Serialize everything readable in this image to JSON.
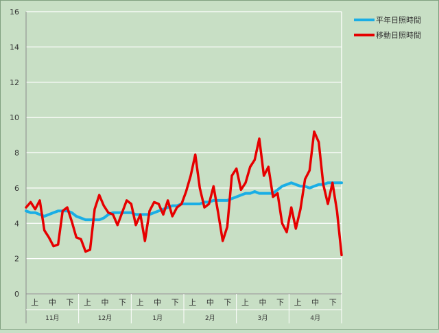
{
  "chart_data": {
    "type": "line",
    "ylim": [
      0,
      16
    ],
    "yticks": [
      0,
      2,
      4,
      6,
      8,
      10,
      12,
      14,
      16
    ],
    "grid": true,
    "legend_position": "top-right",
    "colors": {
      "background": "#c8dfc5",
      "grid": "#ffffff",
      "normal": "#1aaee5",
      "moving": "#e60000"
    },
    "months": [
      {
        "label": "11月",
        "periods": [
          "上",
          "中",
          "下"
        ]
      },
      {
        "label": "12月",
        "periods": [
          "上",
          "中",
          "下"
        ]
      },
      {
        "label": "1月",
        "periods": [
          "上",
          "中",
          "下"
        ]
      },
      {
        "label": "2月",
        "periods": [
          "上",
          "中",
          "下"
        ]
      },
      {
        "label": "3月",
        "periods": [
          "上",
          "中",
          "下"
        ]
      },
      {
        "label": "4月",
        "periods": [
          "上",
          "中",
          "下"
        ]
      }
    ],
    "series": [
      {
        "name": "平年日照時間",
        "color": "#1aaee5",
        "values": [
          4.7,
          4.6,
          4.6,
          4.5,
          4.4,
          4.5,
          4.6,
          4.7,
          4.7,
          4.7,
          4.6,
          4.4,
          4.3,
          4.2,
          4.2,
          4.2,
          4.2,
          4.3,
          4.5,
          4.6,
          4.6,
          4.6,
          4.6,
          4.6,
          4.5,
          4.5,
          4.5,
          4.5,
          4.6,
          4.7,
          4.8,
          4.9,
          5.0,
          5.0,
          5.1,
          5.1,
          5.1,
          5.1,
          5.1,
          5.2,
          5.2,
          5.3,
          5.3,
          5.3,
          5.3,
          5.4,
          5.5,
          5.6,
          5.7,
          5.7,
          5.8,
          5.7,
          5.7,
          5.7,
          5.7,
          5.9,
          6.1,
          6.2,
          6.3,
          6.2,
          6.1,
          6.1,
          6.0,
          6.1,
          6.2,
          6.2,
          6.3,
          6.3,
          6.3,
          6.3
        ]
      },
      {
        "name": "移動日照時間",
        "color": "#e60000",
        "values": [
          4.9,
          5.2,
          4.8,
          5.3,
          3.6,
          3.2,
          2.7,
          2.8,
          4.7,
          4.9,
          4.1,
          3.2,
          3.1,
          2.4,
          2.5,
          4.8,
          5.6,
          5.0,
          4.6,
          4.5,
          3.9,
          4.6,
          5.3,
          5.1,
          3.9,
          4.5,
          3.0,
          4.7,
          5.2,
          5.1,
          4.5,
          5.3,
          4.4,
          4.9,
          5.1,
          5.8,
          6.7,
          7.9,
          6.0,
          4.9,
          5.1,
          6.1,
          4.6,
          3.0,
          3.8,
          6.7,
          7.1,
          5.9,
          6.3,
          7.2,
          7.6,
          8.8,
          6.7,
          7.2,
          5.5,
          5.7,
          4.0,
          3.5,
          4.9,
          3.7,
          4.8,
          6.5,
          7.0,
          9.2,
          8.6,
          6.2,
          5.1,
          6.3,
          4.7,
          2.2
        ]
      }
    ]
  }
}
